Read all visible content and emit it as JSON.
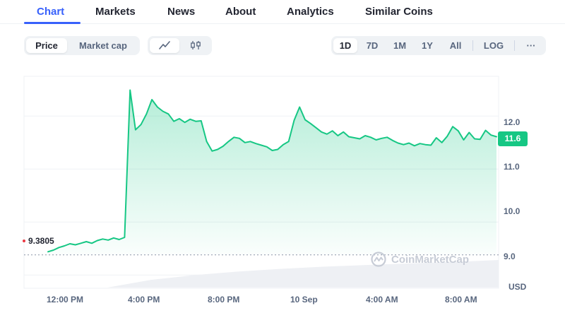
{
  "tabs": [
    {
      "label": "Chart",
      "active": true
    },
    {
      "label": "Markets",
      "active": false
    },
    {
      "label": "News",
      "active": false
    },
    {
      "label": "About",
      "active": false
    },
    {
      "label": "Analytics",
      "active": false
    },
    {
      "label": "Similar Coins",
      "active": false
    }
  ],
  "toolbar": {
    "metric_buttons": [
      {
        "label": "Price",
        "active": true
      },
      {
        "label": "Market cap",
        "active": false
      }
    ],
    "chart_type_buttons": [
      {
        "icon": "line-chart-icon",
        "active": true
      },
      {
        "icon": "candlestick-icon",
        "active": false
      }
    ],
    "range_buttons": [
      {
        "label": "1D",
        "active": true
      },
      {
        "label": "7D",
        "active": false
      },
      {
        "label": "1M",
        "active": false
      },
      {
        "label": "1Y",
        "active": false
      },
      {
        "label": "All",
        "active": false
      }
    ],
    "log_label": "LOG",
    "more_label": "···"
  },
  "chart": {
    "current_price": "11.6",
    "baseline_label": "9.3805",
    "unit": "USD",
    "watermark": "CoinMarketCap",
    "colors": {
      "up": "#16c784",
      "baseline": "#ea3943",
      "accent": "#3861fb"
    }
  },
  "chart_data": {
    "type": "line",
    "x_ticks": [
      "12:00 PM",
      "4:00 PM",
      "8:00 PM",
      "10 Sep",
      "4:00 AM",
      "8:00 AM"
    ],
    "y_ticks": [
      "12.0",
      "11.0",
      "10.0",
      "9.0"
    ],
    "ylim": [
      8.75,
      12.75
    ],
    "baseline": 9.3805,
    "grid": true,
    "series": [
      {
        "values": [
          9.44,
          9.47,
          9.52,
          9.55,
          9.59,
          9.57,
          9.6,
          9.63,
          9.6,
          9.65,
          9.68,
          9.66,
          9.7,
          9.67,
          9.71,
          12.49,
          11.74,
          11.84,
          12.04,
          12.31,
          12.17,
          12.09,
          12.04,
          11.9,
          11.95,
          11.88,
          11.94,
          11.9,
          11.91,
          11.52,
          11.34,
          11.37,
          11.43,
          11.52,
          11.6,
          11.58,
          11.5,
          11.52,
          11.48,
          11.45,
          11.42,
          11.35,
          11.37,
          11.46,
          11.52,
          11.92,
          12.17,
          11.93,
          11.86,
          11.78,
          11.7,
          11.66,
          11.72,
          11.63,
          11.7,
          11.61,
          11.59,
          11.57,
          11.63,
          11.6,
          11.55,
          11.58,
          11.6,
          11.54,
          11.49,
          11.46,
          11.49,
          11.44,
          11.48,
          11.46,
          11.45,
          11.59,
          11.5,
          11.62,
          11.8,
          11.72,
          11.55,
          11.69,
          11.57,
          11.56,
          11.73,
          11.64,
          11.61
        ]
      }
    ],
    "volume_trend": [
      0.0,
      0.28,
      0.45,
      0.58,
      0.68,
      0.76,
      0.82,
      0.88,
      0.93,
      1.0
    ]
  }
}
